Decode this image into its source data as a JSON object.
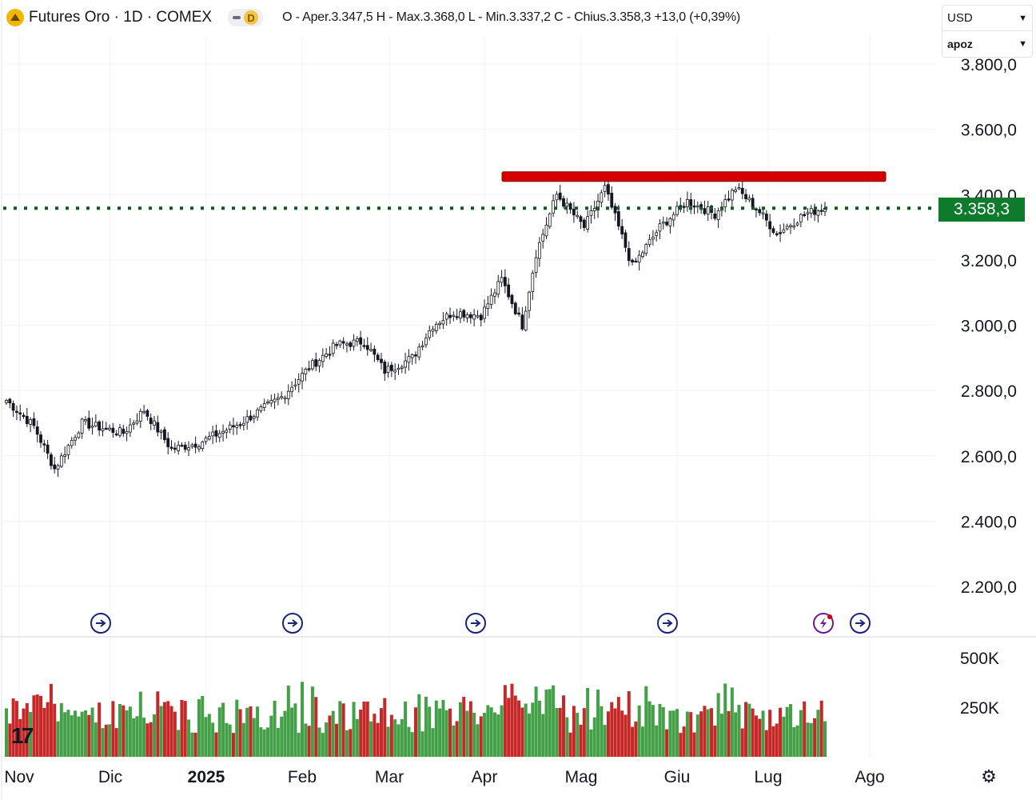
{
  "header": {
    "symbol": "Futures Oro · 1D · COMEX",
    "badge": "D",
    "ohlc": "O - Aper.3.347,5  H - Max.3.368,0  L - Min.3.337,2  C - Chius.3.358,3  +13,0 (+0,39%)"
  },
  "controls": {
    "currency": "USD",
    "unit": "apoz"
  },
  "last_price_label": "3.358,3",
  "colors": {
    "up": "#2e7d32",
    "down": "#b71c1c",
    "volume_up": "#43a047",
    "volume_down": "#c62828",
    "resistance": "#d50000",
    "price_line": "#0b5e1e",
    "event_icon": "#1a237e"
  },
  "icons": {
    "event_markers": "arrow-circle-icon",
    "lightning_marker": "lightning-circle-icon",
    "settings": "gear-icon",
    "logo": "tradingview-logo-icon"
  },
  "chart_data": {
    "type": "candlestick",
    "price_axis": {
      "ticks": [
        2200,
        2400,
        2600,
        2800,
        3000,
        3200,
        3400,
        3600,
        3800
      ],
      "tick_labels": [
        "2.200,0",
        "2.400,0",
        "2.600,0",
        "2.800,0",
        "3.000,0",
        "3.200,0",
        "3.400,0",
        "3.600,0",
        "3.800,0"
      ],
      "range": [
        2120,
        3840
      ]
    },
    "volume_axis": {
      "ticks": [
        250000,
        500000
      ],
      "tick_labels": [
        "250K",
        "500K"
      ]
    },
    "x_axis": {
      "labels": [
        "Nov",
        "Dic",
        "2025",
        "Feb",
        "Mar",
        "Apr",
        "Mag",
        "Giu",
        "Lug",
        "Ago"
      ],
      "bold_labels": [
        "2025"
      ]
    },
    "last_price": 3358.3,
    "resistance_level": 3455,
    "resistance_span": [
      "Apr",
      "Lug"
    ],
    "series_anchors": [
      {
        "bar": 0,
        "price": 2770
      },
      {
        "bar": 8,
        "price": 2690
      },
      {
        "bar": 14,
        "price": 2560
      },
      {
        "bar": 22,
        "price": 2700
      },
      {
        "bar": 34,
        "price": 2670
      },
      {
        "bar": 40,
        "price": 2740
      },
      {
        "bar": 48,
        "price": 2620
      },
      {
        "bar": 56,
        "price": 2640
      },
      {
        "bar": 68,
        "price": 2700
      },
      {
        "bar": 80,
        "price": 2780
      },
      {
        "bar": 88,
        "price": 2870
      },
      {
        "bar": 96,
        "price": 2940
      },
      {
        "bar": 104,
        "price": 2950
      },
      {
        "bar": 110,
        "price": 2860
      },
      {
        "bar": 118,
        "price": 2900
      },
      {
        "bar": 124,
        "price": 3000
      },
      {
        "bar": 130,
        "price": 3040
      },
      {
        "bar": 138,
        "price": 3030
      },
      {
        "bar": 144,
        "price": 3140
      },
      {
        "bar": 150,
        "price": 3000
      },
      {
        "bar": 154,
        "price": 3220
      },
      {
        "bar": 160,
        "price": 3400
      },
      {
        "bar": 168,
        "price": 3300
      },
      {
        "bar": 174,
        "price": 3420
      },
      {
        "bar": 182,
        "price": 3180
      },
      {
        "bar": 190,
        "price": 3300
      },
      {
        "bar": 198,
        "price": 3380
      },
      {
        "bar": 206,
        "price": 3340
      },
      {
        "bar": 212,
        "price": 3420
      },
      {
        "bar": 218,
        "price": 3360
      },
      {
        "bar": 224,
        "price": 3280
      },
      {
        "bar": 232,
        "price": 3340
      },
      {
        "bar": 238,
        "price": 3360
      }
    ],
    "event_markers_at": [
      "Dic",
      "Feb",
      "Apr",
      "Giu",
      "Lug",
      "Ago"
    ]
  }
}
